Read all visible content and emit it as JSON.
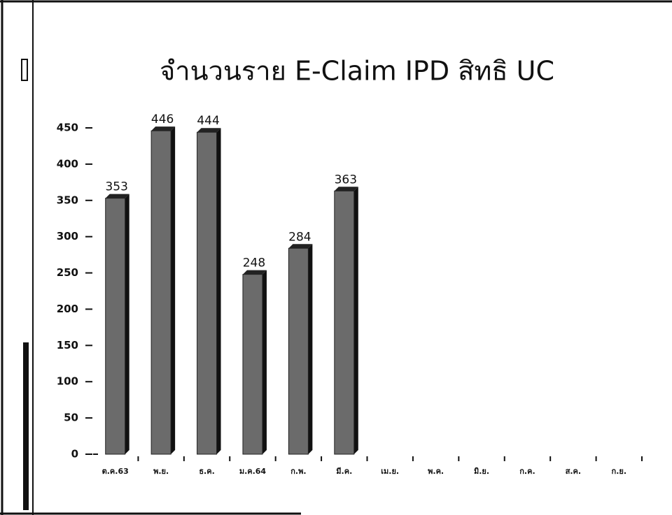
{
  "chart_data": {
    "type": "bar",
    "title": "จำนวนราย E-Claim IPD สิทธิ UC",
    "categories": [
      "ต.ค.63",
      "พ.ย.",
      "ธ.ค.",
      "ม.ค.64",
      "ก.พ.",
      "มี.ค.",
      "เม.ย.",
      "พ.ค.",
      "มิ.ย.",
      "ก.ค.",
      "ส.ค.",
      "ก.ย."
    ],
    "values": [
      353,
      446,
      444,
      248,
      284,
      363,
      null,
      null,
      null,
      null,
      null,
      null
    ],
    "color": "#6b6b6b",
    "ylim": [
      0,
      450
    ],
    "yticks": [
      0,
      50,
      100,
      150,
      200,
      250,
      300,
      350,
      400,
      450
    ],
    "grid": false
  }
}
